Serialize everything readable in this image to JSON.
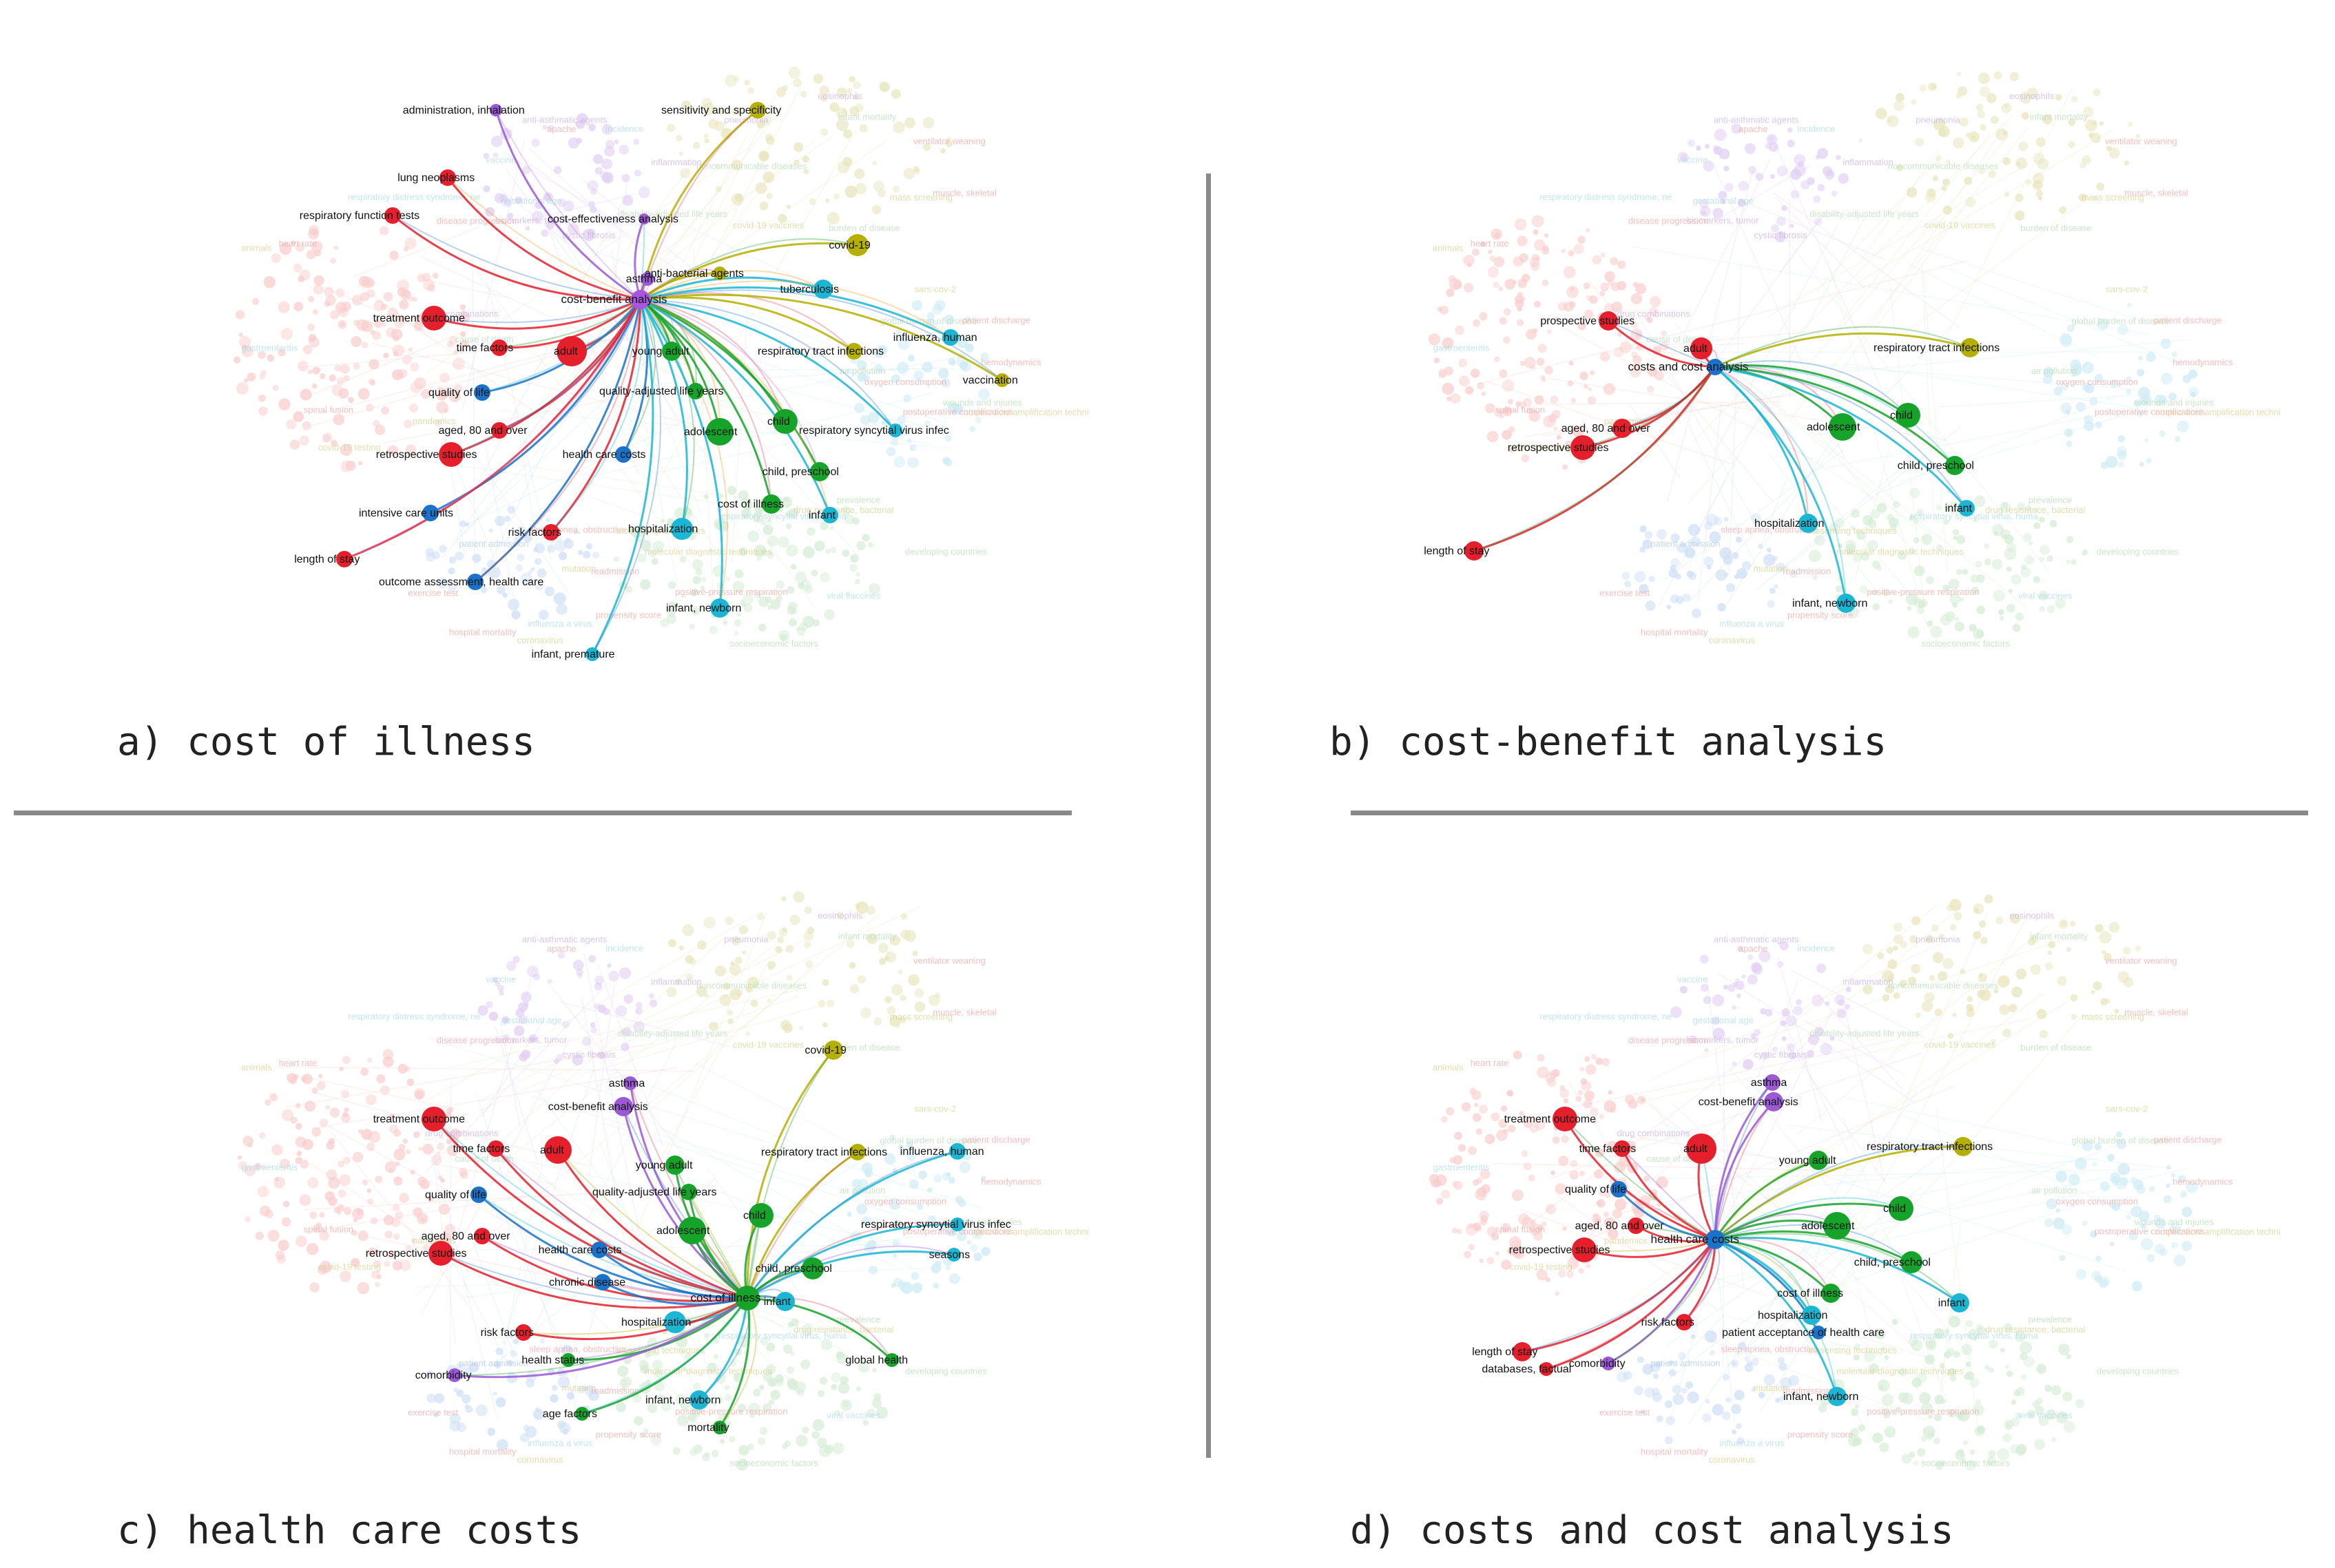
{
  "panels": [
    {
      "id": "a",
      "caption": "a) cost of illness",
      "hub": "cost-benefit analysis",
      "hub_color": "#a855e0",
      "edge_colors": [
        "#c77dee",
        "#e0475a",
        "#f0a020",
        "#2e7fd0",
        "#19b8d6",
        "#23a02f"
      ],
      "highlighted": [
        {
          "label": "administration, inhalation",
          "color": "#9b59d6"
        },
        {
          "label": "sensitivity and specificity",
          "color": "#b5b000"
        },
        {
          "label": "lung neoplasms",
          "color": "#e51f2b"
        },
        {
          "label": "respiratory function tests",
          "color": "#e51f2b"
        },
        {
          "label": "cost-effectiveness analysis",
          "color": "#9b59d6"
        },
        {
          "label": "covid-19",
          "color": "#b5b000"
        },
        {
          "label": "asthma",
          "color": "#9b59d6"
        },
        {
          "label": "anti-bacterial agents",
          "color": "#b5b000"
        },
        {
          "label": "tuberculosis",
          "color": "#1ab6d4"
        },
        {
          "label": "treatment outcome",
          "color": "#e51f2b"
        },
        {
          "label": "adult",
          "color": "#e51f2b"
        },
        {
          "label": "time factors",
          "color": "#e51f2b"
        },
        {
          "label": "young adult",
          "color": "#16a32a"
        },
        {
          "label": "respiratory tract infections",
          "color": "#b5b000"
        },
        {
          "label": "influenza, human",
          "color": "#1ab6d4"
        },
        {
          "label": "vaccination",
          "color": "#b5b000"
        },
        {
          "label": "quality of life",
          "color": "#1a73c9"
        },
        {
          "label": "quality-adjusted life years",
          "color": "#16a32a"
        },
        {
          "label": "aged, 80 and over",
          "color": "#e51f2b"
        },
        {
          "label": "child",
          "color": "#16a32a"
        },
        {
          "label": "adolescent",
          "color": "#16a32a"
        },
        {
          "label": "respiratory syncytial virus infec",
          "color": "#1ab6d4"
        },
        {
          "label": "retrospective studies",
          "color": "#e51f2b"
        },
        {
          "label": "health care costs",
          "color": "#1a73c9"
        },
        {
          "label": "child, preschool",
          "color": "#16a32a"
        },
        {
          "label": "cost of illness",
          "color": "#16a32a"
        },
        {
          "label": "infant",
          "color": "#1ab6d4"
        },
        {
          "label": "intensive care units",
          "color": "#1a73c9"
        },
        {
          "label": "risk factors",
          "color": "#e51f2b"
        },
        {
          "label": "hospitalization",
          "color": "#1ab6d4"
        },
        {
          "label": "length of stay",
          "color": "#e51f2b"
        },
        {
          "label": "outcome assessment, health care",
          "color": "#1a73c9"
        },
        {
          "label": "infant, newborn",
          "color": "#1ab6d4"
        },
        {
          "label": "infant, premature",
          "color": "#1ab6d4"
        }
      ]
    },
    {
      "id": "b",
      "caption": "b) cost-benefit analysis",
      "hub": "costs and cost analysis",
      "hub_color": "#1a73c9",
      "edge_colors": [
        "#2e7fd0",
        "#e0475a",
        "#23a02f",
        "#19b8d6"
      ],
      "highlighted": [
        {
          "label": "prospective studies",
          "color": "#e51f2b"
        },
        {
          "label": "adult",
          "color": "#e51f2b"
        },
        {
          "label": "respiratory tract infections",
          "color": "#b5b000"
        },
        {
          "label": "aged, 80 and over",
          "color": "#e51f2b"
        },
        {
          "label": "child",
          "color": "#16a32a"
        },
        {
          "label": "adolescent",
          "color": "#16a32a"
        },
        {
          "label": "retrospective studies",
          "color": "#e51f2b"
        },
        {
          "label": "child, preschool",
          "color": "#16a32a"
        },
        {
          "label": "infant",
          "color": "#1ab6d4"
        },
        {
          "label": "hospitalization",
          "color": "#1ab6d4"
        },
        {
          "label": "length of stay",
          "color": "#e51f2b"
        },
        {
          "label": "infant, newborn",
          "color": "#1ab6d4"
        }
      ]
    },
    {
      "id": "c",
      "caption": "c) health care costs",
      "hub": "cost of illness",
      "hub_color": "#16a32a",
      "edge_colors": [
        "#23a02f",
        "#e0475a",
        "#2e7fd0",
        "#19b8d6",
        "#b5b000",
        "#9b59d6"
      ],
      "highlighted": [
        {
          "label": "covid-19",
          "color": "#b5b000"
        },
        {
          "label": "asthma",
          "color": "#9b59d6"
        },
        {
          "label": "cost-benefit analysis",
          "color": "#9b59d6"
        },
        {
          "label": "treatment outcome",
          "color": "#e51f2b"
        },
        {
          "label": "adult",
          "color": "#e51f2b"
        },
        {
          "label": "time factors",
          "color": "#e51f2b"
        },
        {
          "label": "young adult",
          "color": "#16a32a"
        },
        {
          "label": "respiratory tract infections",
          "color": "#b5b000"
        },
        {
          "label": "influenza, human",
          "color": "#1ab6d4"
        },
        {
          "label": "quality of life",
          "color": "#1a73c9"
        },
        {
          "label": "quality-adjusted life years",
          "color": "#16a32a"
        },
        {
          "label": "aged, 80 and over",
          "color": "#e51f2b"
        },
        {
          "label": "child",
          "color": "#16a32a"
        },
        {
          "label": "respiratory syncytial virus infec",
          "color": "#1ab6d4"
        },
        {
          "label": "retrospective studies",
          "color": "#e51f2b"
        },
        {
          "label": "health care costs",
          "color": "#1a73c9"
        },
        {
          "label": "adolescent",
          "color": "#16a32a"
        },
        {
          "label": "seasons",
          "color": "#1ab6d4"
        },
        {
          "label": "child, preschool",
          "color": "#16a32a"
        },
        {
          "label": "chronic disease",
          "color": "#1a73c9"
        },
        {
          "label": "infant",
          "color": "#1ab6d4"
        },
        {
          "label": "hospitalization",
          "color": "#1ab6d4"
        },
        {
          "label": "risk factors",
          "color": "#e51f2b"
        },
        {
          "label": "health status",
          "color": "#16a32a"
        },
        {
          "label": "comorbidity",
          "color": "#9b59d6"
        },
        {
          "label": "global health",
          "color": "#16a32a"
        },
        {
          "label": "infant, newborn",
          "color": "#1ab6d4"
        },
        {
          "label": "age factors",
          "color": "#16a32a"
        },
        {
          "label": "mortality",
          "color": "#16a32a"
        }
      ]
    },
    {
      "id": "d",
      "caption": "d) costs and cost analysis",
      "hub": "health care costs",
      "hub_color": "#1a73c9",
      "edge_colors": [
        "#2e7fd0",
        "#e0475a",
        "#23a02f",
        "#19b8d6",
        "#9b59d6",
        "#b5b000"
      ],
      "highlighted": [
        {
          "label": "asthma",
          "color": "#9b59d6"
        },
        {
          "label": "cost-benefit analysis",
          "color": "#9b59d6"
        },
        {
          "label": "treatment outcome",
          "color": "#e51f2b"
        },
        {
          "label": "adult",
          "color": "#e51f2b"
        },
        {
          "label": "time factors",
          "color": "#e51f2b"
        },
        {
          "label": "young adult",
          "color": "#16a32a"
        },
        {
          "label": "respiratory tract infections",
          "color": "#b5b000"
        },
        {
          "label": "quality of life",
          "color": "#1a73c9"
        },
        {
          "label": "aged, 80 and over",
          "color": "#e51f2b"
        },
        {
          "label": "child",
          "color": "#16a32a"
        },
        {
          "label": "adolescent",
          "color": "#16a32a"
        },
        {
          "label": "retrospective studies",
          "color": "#e51f2b"
        },
        {
          "label": "child, preschool",
          "color": "#16a32a"
        },
        {
          "label": "cost of illness",
          "color": "#16a32a"
        },
        {
          "label": "infant",
          "color": "#1ab6d4"
        },
        {
          "label": "hospitalization",
          "color": "#1ab6d4"
        },
        {
          "label": "risk factors",
          "color": "#e51f2b"
        },
        {
          "label": "patient acceptance of health care",
          "color": "#1a73c9"
        },
        {
          "label": "length of stay",
          "color": "#e51f2b"
        },
        {
          "label": "databases, factual",
          "color": "#e51f2b"
        },
        {
          "label": "comorbidity",
          "color": "#9b59d6"
        },
        {
          "label": "infant, newborn",
          "color": "#1ab6d4"
        }
      ]
    }
  ],
  "background_terms": [
    {
      "label": "drug combinations",
      "color": "#c9b0e8"
    },
    {
      "label": "biomarkers, tumor",
      "color": "#c9b0e8"
    },
    {
      "label": "eosinophils",
      "color": "#c9b0e8"
    },
    {
      "label": "nucleic acid amplification techni",
      "color": "#d6d28a"
    },
    {
      "label": "molecular diagnostic techniques",
      "color": "#d6d28a"
    },
    {
      "label": "mutation",
      "color": "#d6d28a"
    },
    {
      "label": "covid-19 testing",
      "color": "#d6d28a"
    },
    {
      "label": "anti-asthmatic agents",
      "color": "#c9b0e8"
    },
    {
      "label": "muscle, skeletal",
      "color": "#f3a3a3"
    },
    {
      "label": "oxygen consumption",
      "color": "#f3a3a3"
    },
    {
      "label": "drug resistance, bacterial",
      "color": "#d6d28a"
    },
    {
      "label": "influenza a virus",
      "color": "#a8dbe8"
    },
    {
      "label": "animals",
      "color": "#d6d28a"
    },
    {
      "label": "inflammation",
      "color": "#c9b0e8"
    },
    {
      "label": "covid-19 vaccines",
      "color": "#d6d28a"
    },
    {
      "label": "sars-cov-2",
      "color": "#d6d28a"
    },
    {
      "label": "viral vaccines",
      "color": "#a8dbe8"
    },
    {
      "label": "exercise test",
      "color": "#f3a3a3"
    },
    {
      "label": "disease progression",
      "color": "#f3a3a3"
    },
    {
      "label": "cystic fibrosis",
      "color": "#c9b0e8"
    },
    {
      "label": "pneumonia",
      "color": "#c9b0e8"
    },
    {
      "label": "hemodynamics",
      "color": "#f3a3a3"
    },
    {
      "label": "positive-pressure respiration",
      "color": "#f3a3a3"
    },
    {
      "label": "sleep apnea, obstructive",
      "color": "#f3a3a3"
    },
    {
      "label": "pandemics",
      "color": "#d6d28a"
    },
    {
      "label": "vaccine",
      "color": "#a8dbe8"
    },
    {
      "label": "ventilator weaning",
      "color": "#f3a3a3"
    },
    {
      "label": "postoperative complications",
      "color": "#f3a3a3"
    },
    {
      "label": "respiratory syncytial virus, huma",
      "color": "#a8dbe8"
    },
    {
      "label": "propensity score",
      "color": "#f3a3a3"
    },
    {
      "label": "gastroenteritis",
      "color": "#a8dbe8"
    },
    {
      "label": "incidence",
      "color": "#a8dbe8"
    },
    {
      "label": "burden of disease",
      "color": "#b5dcb5"
    },
    {
      "label": "global burden of disease",
      "color": "#b5dcb5"
    },
    {
      "label": "developing countries",
      "color": "#b5dcb5"
    },
    {
      "label": "hospital mortality",
      "color": "#f3a3a3"
    },
    {
      "label": "respiratory distress syndrome, ne",
      "color": "#a8dbe8"
    },
    {
      "label": "disability-adjusted life years",
      "color": "#b5dcb5"
    },
    {
      "label": "noncommunicable diseases",
      "color": "#b5dcb5"
    },
    {
      "label": "patient discharge",
      "color": "#f3a3a3"
    },
    {
      "label": "socioeconomic factors",
      "color": "#b5dcb5"
    },
    {
      "label": "patient admission",
      "color": "#a8c8ec"
    },
    {
      "label": "cause of death",
      "color": "#b5dcb5"
    },
    {
      "label": "gestational age",
      "color": "#a8dbe8"
    },
    {
      "label": "infant mortality",
      "color": "#b5dcb5"
    },
    {
      "label": "wounds and injuries",
      "color": "#b5dcb5"
    },
    {
      "label": "biosensing techniques",
      "color": "#d6d28a"
    },
    {
      "label": "readmission",
      "color": "#f3a3a3"
    },
    {
      "label": "spinal fusion",
      "color": "#f3a3a3"
    },
    {
      "label": "apache",
      "color": "#f3a3a3"
    },
    {
      "label": "mass screening",
      "color": "#d6d28a"
    },
    {
      "label": "air pollution",
      "color": "#b5dcb5"
    },
    {
      "label": "prevalence",
      "color": "#b5dcb5"
    },
    {
      "label": "coronavirus",
      "color": "#d6d28a"
    },
    {
      "label": "heart rate",
      "color": "#f3a3a3"
    }
  ]
}
